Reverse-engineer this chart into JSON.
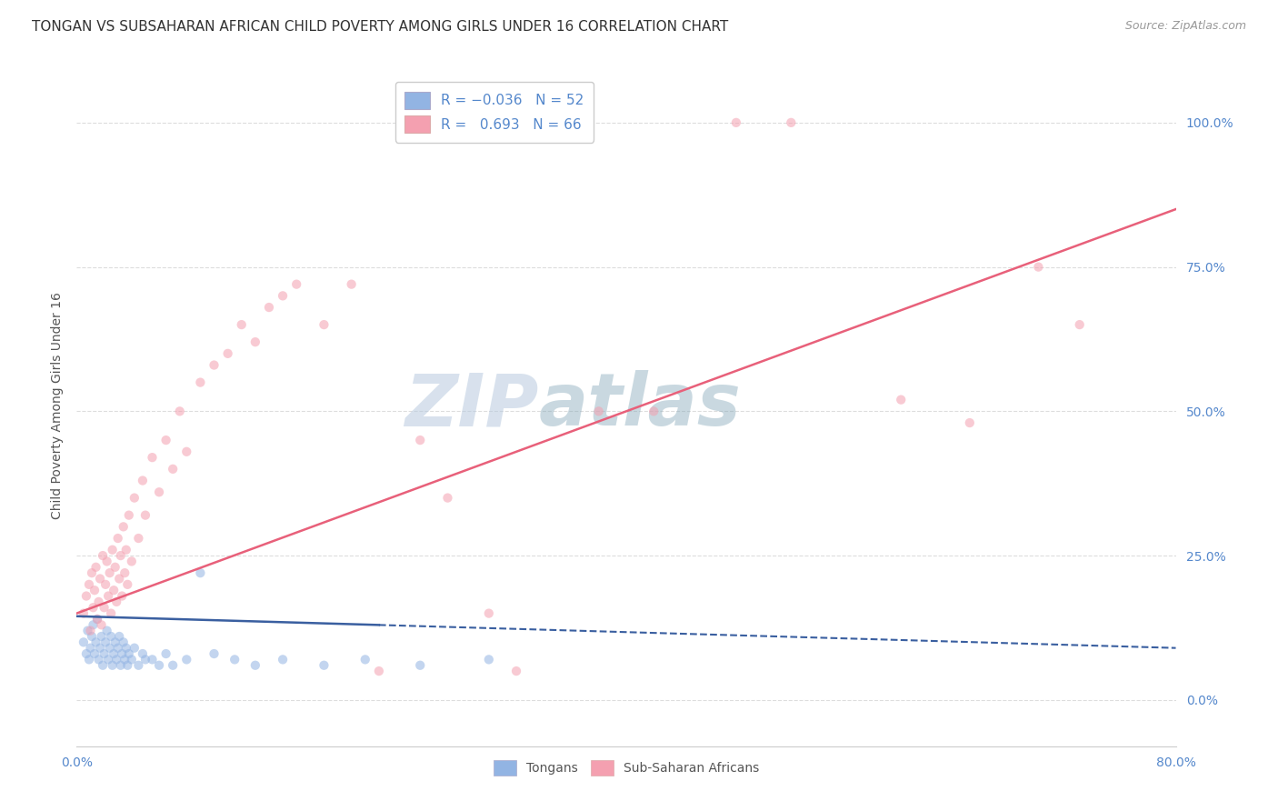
{
  "title": "TONGAN VS SUBSAHARAN AFRICAN CHILD POVERTY AMONG GIRLS UNDER 16 CORRELATION CHART",
  "source": "Source: ZipAtlas.com",
  "ylabel": "Child Poverty Among Girls Under 16",
  "watermark": "ZIPatlas",
  "xmin": 0.0,
  "xmax": 0.8,
  "ymin": -0.08,
  "ymax": 1.1,
  "yticks": [
    0.0,
    0.25,
    0.5,
    0.75,
    1.0
  ],
  "ytick_labels": [
    "0.0%",
    "25.0%",
    "50.0%",
    "75.0%",
    "100.0%"
  ],
  "xticks": [
    0.0,
    0.1,
    0.2,
    0.3,
    0.4,
    0.5,
    0.6,
    0.7,
    0.8
  ],
  "xtick_labels": [
    "0.0%",
    "",
    "",
    "",
    "",
    "",
    "",
    "",
    "80.0%"
  ],
  "color_tongan": "#92B4E3",
  "color_african": "#F4A0B0",
  "line_color_tongan": "#3A5FA0",
  "line_color_african": "#E8607A",
  "background_color": "#FFFFFF",
  "grid_color": "#DDDDDD",
  "title_color": "#333333",
  "axis_label_color": "#5588CC",
  "watermark_color": "#C8D8EE",
  "title_fontsize": 11,
  "source_fontsize": 9,
  "label_fontsize": 10,
  "tick_fontsize": 10,
  "legend_fontsize": 11,
  "marker_size": 55,
  "marker_alpha": 0.55,
  "tongan_x": [
    0.005,
    0.007,
    0.008,
    0.009,
    0.01,
    0.011,
    0.012,
    0.013,
    0.014,
    0.015,
    0.016,
    0.017,
    0.018,
    0.019,
    0.02,
    0.021,
    0.022,
    0.023,
    0.024,
    0.025,
    0.026,
    0.027,
    0.028,
    0.029,
    0.03,
    0.031,
    0.032,
    0.033,
    0.034,
    0.035,
    0.036,
    0.037,
    0.038,
    0.04,
    0.042,
    0.045,
    0.048,
    0.05,
    0.055,
    0.06,
    0.065,
    0.07,
    0.08,
    0.09,
    0.1,
    0.115,
    0.13,
    0.15,
    0.18,
    0.21,
    0.25,
    0.3
  ],
  "tongan_y": [
    0.1,
    0.08,
    0.12,
    0.07,
    0.09,
    0.11,
    0.13,
    0.08,
    0.1,
    0.14,
    0.07,
    0.09,
    0.11,
    0.06,
    0.08,
    0.1,
    0.12,
    0.07,
    0.09,
    0.11,
    0.06,
    0.08,
    0.1,
    0.07,
    0.09,
    0.11,
    0.06,
    0.08,
    0.1,
    0.07,
    0.09,
    0.06,
    0.08,
    0.07,
    0.09,
    0.06,
    0.08,
    0.07,
    0.07,
    0.06,
    0.08,
    0.06,
    0.07,
    0.22,
    0.08,
    0.07,
    0.06,
    0.07,
    0.06,
    0.07,
    0.06,
    0.07
  ],
  "african_x": [
    0.005,
    0.007,
    0.009,
    0.01,
    0.011,
    0.012,
    0.013,
    0.014,
    0.015,
    0.016,
    0.017,
    0.018,
    0.019,
    0.02,
    0.021,
    0.022,
    0.023,
    0.024,
    0.025,
    0.026,
    0.027,
    0.028,
    0.029,
    0.03,
    0.031,
    0.032,
    0.033,
    0.034,
    0.035,
    0.036,
    0.037,
    0.038,
    0.04,
    0.042,
    0.045,
    0.048,
    0.05,
    0.055,
    0.06,
    0.065,
    0.07,
    0.075,
    0.08,
    0.09,
    0.1,
    0.11,
    0.12,
    0.13,
    0.14,
    0.15,
    0.16,
    0.18,
    0.2,
    0.22,
    0.25,
    0.27,
    0.3,
    0.32,
    0.38,
    0.42,
    0.48,
    0.52,
    0.6,
    0.65,
    0.7,
    0.73
  ],
  "african_y": [
    0.15,
    0.18,
    0.2,
    0.12,
    0.22,
    0.16,
    0.19,
    0.23,
    0.14,
    0.17,
    0.21,
    0.13,
    0.25,
    0.16,
    0.2,
    0.24,
    0.18,
    0.22,
    0.15,
    0.26,
    0.19,
    0.23,
    0.17,
    0.28,
    0.21,
    0.25,
    0.18,
    0.3,
    0.22,
    0.26,
    0.2,
    0.32,
    0.24,
    0.35,
    0.28,
    0.38,
    0.32,
    0.42,
    0.36,
    0.45,
    0.4,
    0.5,
    0.43,
    0.55,
    0.58,
    0.6,
    0.65,
    0.62,
    0.68,
    0.7,
    0.72,
    0.65,
    0.72,
    0.05,
    0.45,
    0.35,
    0.15,
    0.05,
    0.5,
    0.5,
    1.0,
    1.0,
    0.52,
    0.48,
    0.75,
    0.65
  ]
}
